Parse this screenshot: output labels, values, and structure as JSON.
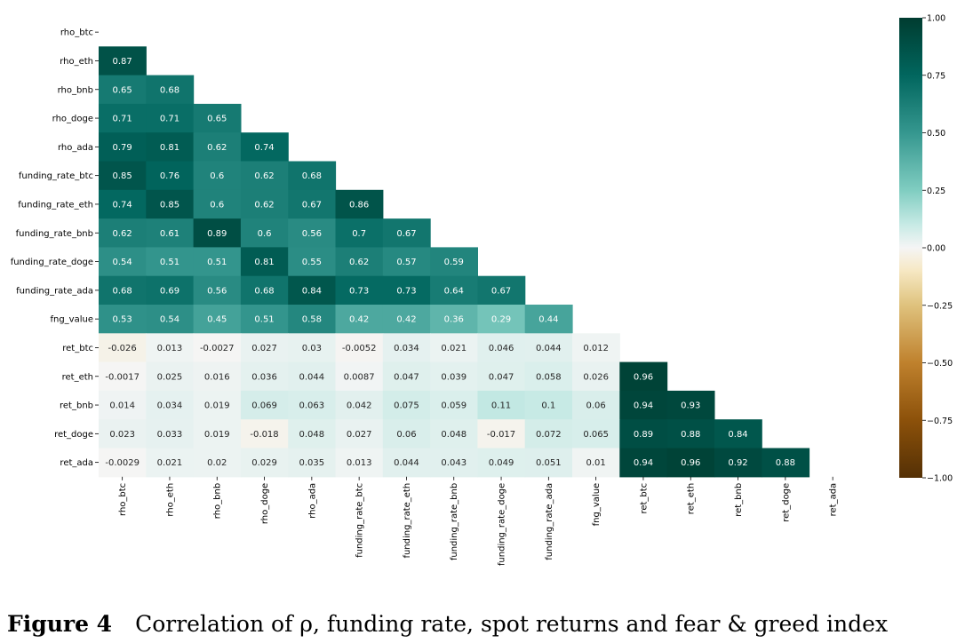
{
  "figure": {
    "label": "Figure 4",
    "caption": "Correlation of ρ, funding rate, spot returns and fear & greed index"
  },
  "chart_data": {
    "type": "heatmap",
    "variables": [
      "rho_btc",
      "rho_eth",
      "rho_bnb",
      "rho_doge",
      "rho_ada",
      "funding_rate_btc",
      "funding_rate_eth",
      "funding_rate_bnb",
      "funding_rate_doge",
      "funding_rate_ada",
      "fng_value",
      "ret_btc",
      "ret_eth",
      "ret_bnb",
      "ret_doge",
      "ret_ada"
    ],
    "mask": "upper-triangle-including-diagonal",
    "lower_triangle": [
      [],
      [
        "0.87"
      ],
      [
        "0.65",
        "0.68"
      ],
      [
        "0.71",
        "0.71",
        "0.65"
      ],
      [
        "0.79",
        "0.81",
        "0.62",
        "0.74"
      ],
      [
        "0.85",
        "0.76",
        "0.6",
        "0.62",
        "0.68"
      ],
      [
        "0.74",
        "0.85",
        "0.6",
        "0.62",
        "0.67",
        "0.86"
      ],
      [
        "0.62",
        "0.61",
        "0.89",
        "0.6",
        "0.56",
        "0.7",
        "0.67"
      ],
      [
        "0.54",
        "0.51",
        "0.51",
        "0.81",
        "0.55",
        "0.62",
        "0.57",
        "0.59"
      ],
      [
        "0.68",
        "0.69",
        "0.56",
        "0.68",
        "0.84",
        "0.73",
        "0.73",
        "0.64",
        "0.67"
      ],
      [
        "0.53",
        "0.54",
        "0.45",
        "0.51",
        "0.58",
        "0.42",
        "0.42",
        "0.36",
        "0.29",
        "0.44"
      ],
      [
        "-0.026",
        "0.013",
        "-0.0027",
        "0.027",
        "0.03",
        "-0.0052",
        "0.034",
        "0.021",
        "0.046",
        "0.044",
        "0.012"
      ],
      [
        "-0.0017",
        "0.025",
        "0.016",
        "0.036",
        "0.044",
        "0.0087",
        "0.047",
        "0.039",
        "0.047",
        "0.058",
        "0.026",
        "0.96"
      ],
      [
        "0.014",
        "0.034",
        "0.019",
        "0.069",
        "0.063",
        "0.042",
        "0.075",
        "0.059",
        "0.11",
        "0.1",
        "0.06",
        "0.94",
        "0.93"
      ],
      [
        "0.023",
        "0.033",
        "0.019",
        "-0.018",
        "0.048",
        "0.027",
        "0.06",
        "0.048",
        "-0.017",
        "0.072",
        "0.065",
        "0.89",
        "0.88",
        "0.84"
      ],
      [
        "-0.0029",
        "0.021",
        "0.02",
        "0.029",
        "0.035",
        "0.013",
        "0.044",
        "0.043",
        "0.049",
        "0.051",
        "0.01",
        "0.94",
        "0.96",
        "0.92",
        "0.88"
      ]
    ],
    "colormap": "BrBG",
    "vmin": -1.0,
    "vmax": 1.0,
    "colorbar_ticks": [
      "1.00",
      "0.75",
      "0.50",
      "0.25",
      "0.00",
      "−0.25",
      "−0.50",
      "−0.75",
      "−1.00"
    ],
    "colorbar_tick_values": [
      1.0,
      0.75,
      0.5,
      0.25,
      0.0,
      -0.25,
      -0.5,
      -0.75,
      -1.0
    ],
    "colors": {
      "stops": [
        [
          -1.0,
          "#543005"
        ],
        [
          -0.75,
          "#8c510a"
        ],
        [
          -0.5,
          "#bf812d"
        ],
        [
          -0.25,
          "#dfc27d"
        ],
        [
          -0.1,
          "#f6e8c3"
        ],
        [
          0.0,
          "#f5f5f5"
        ],
        [
          0.1,
          "#c7eae5"
        ],
        [
          0.25,
          "#80cdc1"
        ],
        [
          0.5,
          "#35978f"
        ],
        [
          0.75,
          "#01665e"
        ],
        [
          1.0,
          "#003c30"
        ]
      ]
    }
  }
}
